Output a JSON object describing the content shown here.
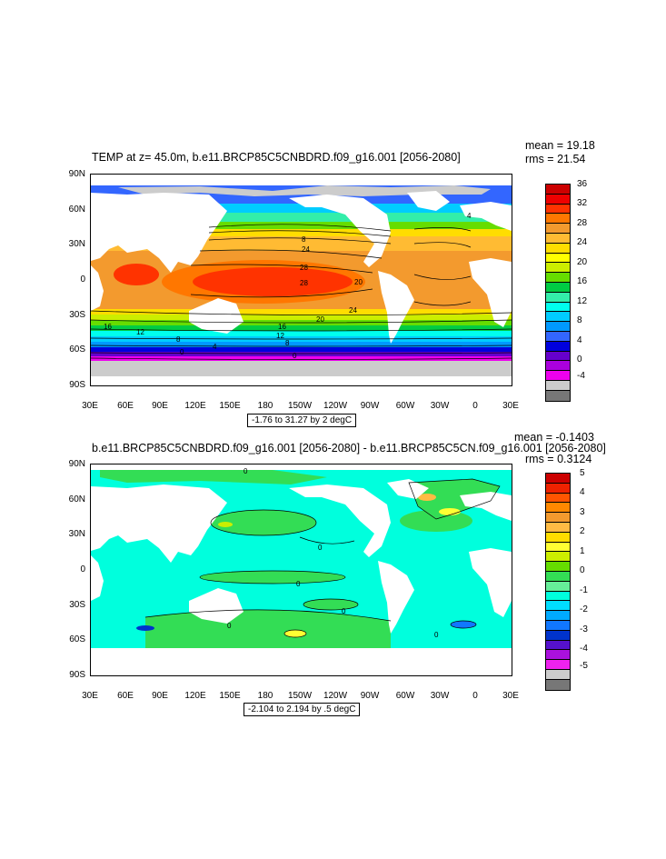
{
  "panel1": {
    "title": "TEMP at z=  45.0m, b.e11.BRCP85C5CNBDRD.f09_g16.001 [2056-2080]",
    "mean": "mean = 19.18",
    "rms": "rms = 21.54",
    "range": "-1.76 to 31.27 by 2 degC",
    "lat_labels": [
      "90N",
      "60N",
      "30N",
      "0",
      "30S",
      "60S",
      "90S"
    ],
    "lon_labels": [
      "30E",
      "60E",
      "90E",
      "120E",
      "150E",
      "180",
      "150W",
      "120W",
      "90W",
      "60W",
      "30W",
      "0",
      "30E"
    ],
    "contour_labels": [
      "24",
      "28",
      "28",
      "20",
      "24",
      "16",
      "20",
      "16",
      "12",
      "12",
      "8",
      "8",
      "4",
      "0",
      "0",
      "4",
      "8"
    ],
    "colorbar_labels": [
      "36",
      "32",
      "28",
      "24",
      "20",
      "16",
      "12",
      "8",
      "4",
      "0",
      "-4"
    ],
    "colorbar_colors": [
      "#cc0000",
      "#ee0000",
      "#ff3300",
      "#ff7700",
      "#f39a2e",
      "#ffbb33",
      "#ffdd00",
      "#ffff00",
      "#ccee00",
      "#66dd00",
      "#00cc44",
      "#33eeaa",
      "#00ffee",
      "#00ccff",
      "#0099ff",
      "#3366ff",
      "#0000dd",
      "#6600cc",
      "#aa00dd",
      "#ee00ee",
      "#cccccc",
      "#777777"
    ]
  },
  "panel2": {
    "title": "b.e11.BRCP85C5CNBDRD.f09_g16.001 [2056-2080] - b.e11.BRCP85C5CN.f09_g16.001 [2056-2080]",
    "mean": "mean = -0.1403",
    "rms": "rms = 0.3124",
    "range": "-2.104 to 2.194 by .5 degC",
    "lat_labels": [
      "90N",
      "60N",
      "30N",
      "0",
      "30S",
      "60S",
      "90S"
    ],
    "lon_labels": [
      "30E",
      "60E",
      "90E",
      "120E",
      "150E",
      "180",
      "150W",
      "120W",
      "90W",
      "60W",
      "30W",
      "0",
      "30E"
    ],
    "contour_labels": [
      "0",
      "0",
      "0",
      "0",
      "0",
      "0"
    ],
    "colorbar_labels": [
      "5",
      "4",
      "3",
      "2",
      "1",
      "0",
      "-1",
      "-2",
      "-3",
      "-4",
      "-5"
    ],
    "colorbar_colors": [
      "#cc0000",
      "#ee2200",
      "#ff5500",
      "#ff8800",
      "#f39a2e",
      "#ffbb44",
      "#ffdd00",
      "#ffff33",
      "#ccee00",
      "#66dd00",
      "#33dd55",
      "#66ee99",
      "#00ffdd",
      "#00ddff",
      "#00aaff",
      "#1177ff",
      "#0033cc",
      "#5511cc",
      "#aa11dd",
      "#ee22ee",
      "#cccccc",
      "#777777"
    ]
  }
}
